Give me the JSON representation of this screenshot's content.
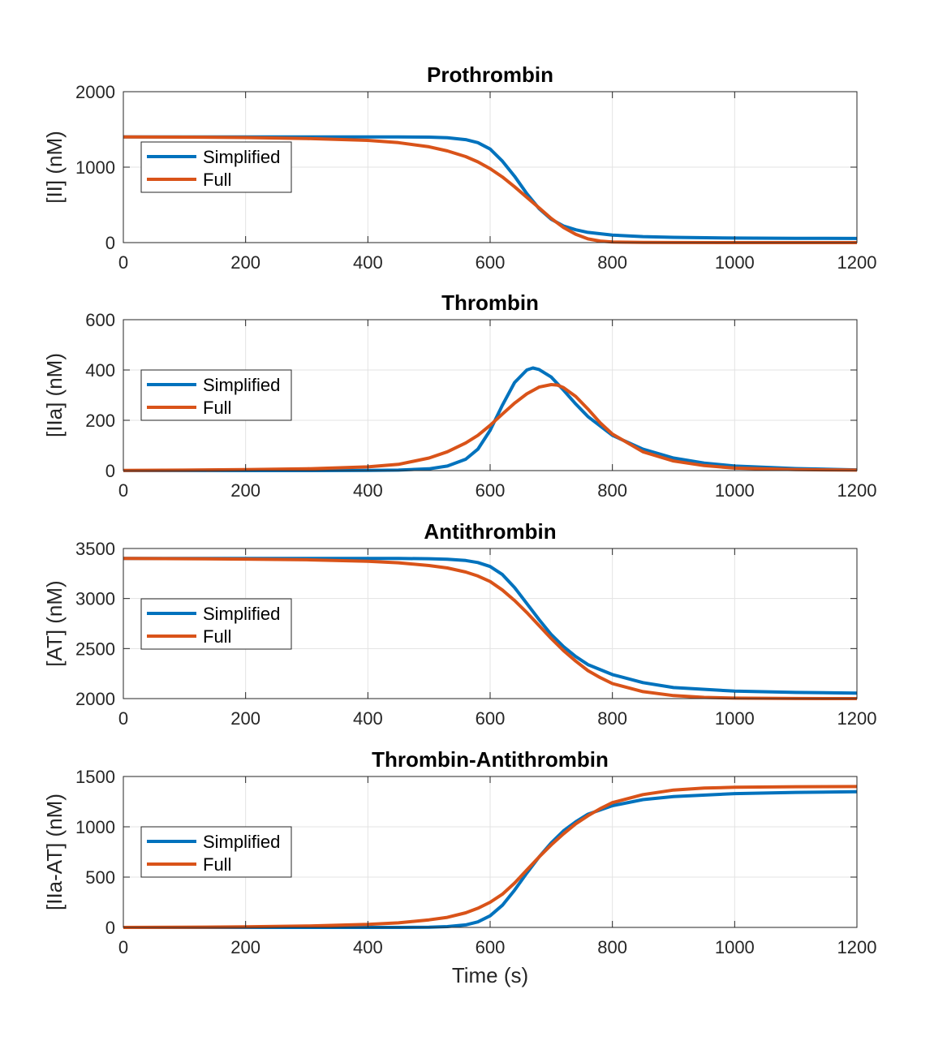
{
  "chart_data": [
    {
      "type": "line",
      "title": "Prothrombin",
      "xlabel": "",
      "ylabel": "[II] (nM)",
      "xlim": [
        0,
        1200
      ],
      "ylim": [
        0,
        2000
      ],
      "xticks": [
        "0",
        "200",
        "400",
        "600",
        "800",
        "1000",
        "1200"
      ],
      "yticks": [
        "0",
        "1000",
        "2000"
      ],
      "grid": true,
      "legend": {
        "placement": "left-middle",
        "entries": [
          "Simplified",
          "Full"
        ]
      },
      "series": [
        {
          "name": "Simplified",
          "color": "#0072BD",
          "x": [
            0,
            100,
            200,
            300,
            400,
            450,
            500,
            530,
            560,
            580,
            600,
            620,
            640,
            660,
            680,
            700,
            720,
            740,
            760,
            800,
            850,
            900,
            1000,
            1100,
            1200
          ],
          "y": [
            1400,
            1400,
            1400,
            1400,
            1400,
            1400,
            1398,
            1390,
            1365,
            1325,
            1240,
            1080,
            880,
            650,
            450,
            310,
            220,
            170,
            135,
            100,
            80,
            70,
            60,
            57,
            55
          ]
        },
        {
          "name": "Full",
          "color": "#D95319",
          "x": [
            0,
            100,
            200,
            300,
            400,
            450,
            500,
            530,
            560,
            580,
            600,
            620,
            640,
            660,
            680,
            700,
            720,
            740,
            760,
            780,
            800,
            850,
            900,
            1000,
            1100,
            1200
          ],
          "y": [
            1400,
            1398,
            1392,
            1380,
            1355,
            1325,
            1270,
            1215,
            1140,
            1070,
            980,
            870,
            740,
            600,
            460,
            320,
            200,
            110,
            50,
            20,
            8,
            2,
            1,
            0,
            0,
            0
          ]
        }
      ]
    },
    {
      "type": "line",
      "title": "Thrombin",
      "xlabel": "",
      "ylabel": "[IIa] (nM)",
      "xlim": [
        0,
        1200
      ],
      "ylim": [
        0,
        600
      ],
      "xticks": [
        "0",
        "200",
        "400",
        "600",
        "800",
        "1000",
        "1200"
      ],
      "yticks": [
        "0",
        "200",
        "400",
        "600"
      ],
      "grid": true,
      "legend": {
        "placement": "left-middle",
        "entries": [
          "Simplified",
          "Full"
        ]
      },
      "series": [
        {
          "name": "Simplified",
          "color": "#0072BD",
          "x": [
            0,
            300,
            400,
            450,
            500,
            530,
            560,
            580,
            600,
            620,
            640,
            660,
            670,
            680,
            700,
            720,
            740,
            760,
            800,
            850,
            900,
            950,
            1000,
            1100,
            1200
          ],
          "y": [
            0,
            0,
            1,
            2,
            7,
            18,
            45,
            85,
            160,
            260,
            350,
            400,
            408,
            402,
            372,
            320,
            265,
            215,
            140,
            85,
            50,
            30,
            18,
            8,
            3
          ]
        },
        {
          "name": "Full",
          "color": "#D95319",
          "x": [
            0,
            100,
            200,
            300,
            400,
            450,
            500,
            530,
            560,
            580,
            600,
            620,
            640,
            660,
            680,
            700,
            710,
            720,
            740,
            760,
            780,
            800,
            850,
            900,
            950,
            1000,
            1100,
            1200
          ],
          "y": [
            1,
            2,
            4,
            7,
            15,
            25,
            50,
            75,
            110,
            140,
            180,
            225,
            268,
            305,
            332,
            342,
            340,
            330,
            295,
            245,
            190,
            145,
            75,
            38,
            20,
            10,
            4,
            2
          ]
        }
      ]
    },
    {
      "type": "line",
      "title": "Antithrombin",
      "xlabel": "",
      "ylabel": "[AT] (nM)",
      "xlim": [
        0,
        1200
      ],
      "ylim": [
        2000,
        3500
      ],
      "xticks": [
        "0",
        "200",
        "400",
        "600",
        "800",
        "1000",
        "1200"
      ],
      "yticks": [
        "2000",
        "2500",
        "3000",
        "3500"
      ],
      "grid": true,
      "legend": {
        "placement": "left-middle",
        "entries": [
          "Simplified",
          "Full"
        ]
      },
      "series": [
        {
          "name": "Simplified",
          "color": "#0072BD",
          "x": [
            0,
            100,
            200,
            300,
            400,
            450,
            500,
            530,
            560,
            580,
            600,
            620,
            640,
            660,
            680,
            700,
            720,
            740,
            760,
            800,
            850,
            900,
            1000,
            1100,
            1200
          ],
          "y": [
            3400,
            3400,
            3400,
            3400,
            3400,
            3400,
            3398,
            3393,
            3380,
            3360,
            3320,
            3240,
            3110,
            2950,
            2790,
            2640,
            2520,
            2420,
            2340,
            2240,
            2160,
            2110,
            2075,
            2062,
            2055
          ]
        },
        {
          "name": "Full",
          "color": "#D95319",
          "x": [
            0,
            100,
            200,
            300,
            400,
            450,
            500,
            530,
            560,
            580,
            600,
            620,
            640,
            660,
            680,
            700,
            720,
            740,
            760,
            780,
            800,
            850,
            900,
            950,
            1000,
            1100,
            1200
          ],
          "y": [
            3400,
            3398,
            3394,
            3387,
            3372,
            3357,
            3330,
            3305,
            3265,
            3225,
            3170,
            3085,
            2980,
            2860,
            2730,
            2600,
            2480,
            2375,
            2280,
            2210,
            2150,
            2070,
            2030,
            2012,
            2005,
            2001,
            2000
          ]
        }
      ]
    },
    {
      "type": "line",
      "title": "Thrombin-Antithrombin",
      "xlabel": "Time (s)",
      "ylabel": "[IIa-AT] (nM)",
      "xlim": [
        0,
        1200
      ],
      "ylim": [
        0,
        1500
      ],
      "xticks": [
        "0",
        "200",
        "400",
        "600",
        "800",
        "1000",
        "1200"
      ],
      "yticks": [
        "0",
        "500",
        "1000",
        "1500"
      ],
      "grid": true,
      "legend": {
        "placement": "left-middle",
        "entries": [
          "Simplified",
          "Full"
        ]
      },
      "series": [
        {
          "name": "Simplified",
          "color": "#0072BD",
          "x": [
            0,
            100,
            200,
            300,
            400,
            450,
            500,
            530,
            560,
            580,
            600,
            620,
            640,
            660,
            680,
            700,
            720,
            740,
            760,
            800,
            850,
            900,
            1000,
            1100,
            1200
          ],
          "y": [
            0,
            0,
            0,
            0,
            0,
            0,
            2,
            8,
            25,
            55,
            115,
            220,
            370,
            540,
            700,
            840,
            960,
            1050,
            1125,
            1210,
            1270,
            1300,
            1330,
            1342,
            1348
          ]
        },
        {
          "name": "Full",
          "color": "#D95319",
          "x": [
            0,
            100,
            200,
            300,
            400,
            450,
            500,
            530,
            560,
            580,
            600,
            620,
            640,
            660,
            680,
            700,
            720,
            740,
            760,
            780,
            800,
            850,
            900,
            950,
            1000,
            1100,
            1200
          ],
          "y": [
            0,
            2,
            6,
            14,
            30,
            45,
            75,
            100,
            145,
            190,
            250,
            330,
            440,
            570,
            700,
            820,
            930,
            1030,
            1110,
            1180,
            1240,
            1320,
            1365,
            1385,
            1393,
            1398,
            1400
          ]
        }
      ]
    }
  ]
}
